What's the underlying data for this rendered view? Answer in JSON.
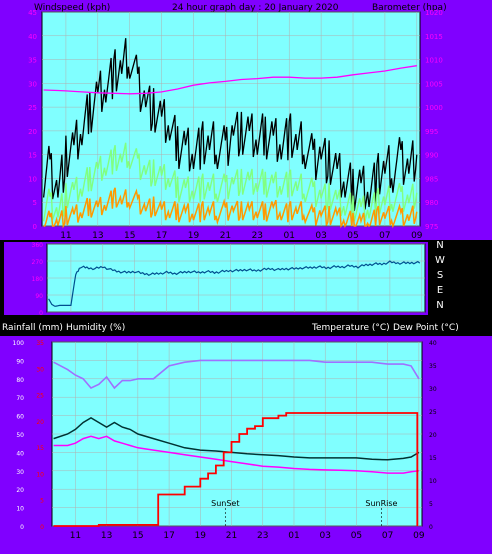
{
  "colors": {
    "frame_purple": "#8000ff",
    "plot_bg": "#80ffff",
    "top_bg": "#3a3a3a",
    "gust": "#000000",
    "wind_avg": "#80ff80",
    "wind_low": "#ff9900",
    "barometer": "#ff00ff",
    "direction": "#004f8f",
    "humidity": "#a070ff",
    "temperature": "#003333",
    "dewpoint": "#ff00ff",
    "rainfall": "#ff0000"
  },
  "header": {
    "windspeed_label": "Windspeed (kph)",
    "title": "24 hour graph day : 20 January 2020",
    "barometer_label": "Barometer (hpa)"
  },
  "x_ticks": [
    "11",
    "13",
    "15",
    "17",
    "19",
    "21",
    "23",
    "01",
    "03",
    "05",
    "07",
    "09"
  ],
  "wind_axis": {
    "left_ticks": [
      "0",
      "5",
      "10",
      "15",
      "20",
      "25",
      "30",
      "35",
      "40",
      "45"
    ],
    "right_ticks": [
      "975",
      "980",
      "985",
      "990",
      "995",
      "1000",
      "1005",
      "1010",
      "1015",
      "1020"
    ]
  },
  "direction_axis": {
    "left_ticks": [
      "360",
      "270",
      "180",
      "90",
      "0"
    ],
    "compass": [
      "N",
      "W",
      "S",
      "E",
      "N"
    ]
  },
  "bottom_header": {
    "rainfall_label": "Rainfall (mm)",
    "humidity_label": "Humidity (%)",
    "temp_label": "Temperature (°C)",
    "dew_label": "Dew Point (°C)"
  },
  "bottom_axis": {
    "left_ticks": [
      "0",
      "10",
      "20",
      "30",
      "40",
      "50",
      "60",
      "70",
      "80",
      "90",
      "100"
    ],
    "rain_ticks": [
      "0",
      "5",
      "10",
      "15",
      "20",
      "25",
      "30",
      "35"
    ],
    "right_ticks": [
      "0",
      "5",
      "10",
      "15",
      "20",
      "25",
      "30",
      "35",
      "40"
    ]
  },
  "events": [
    {
      "label": "SunSet",
      "hour": 20.6
    },
    {
      "label": "SunRise",
      "hour": 6.6
    }
  ],
  "chart_data": [
    {
      "type": "line",
      "panel": "wind-barometer",
      "x_unit": "hour of day",
      "xlim": [
        9.5,
        33.2
      ],
      "ylim": [
        0,
        45
      ],
      "y2lim": [
        975,
        1020
      ],
      "series": [
        {
          "name": "Windspeed (kph)",
          "role": "gust-max",
          "x": [
            9.6,
            10,
            10.5,
            11,
            11.5,
            12,
            12.5,
            13,
            13.5,
            14,
            14.5,
            15,
            15.5,
            16,
            16.5,
            17,
            17.5,
            18,
            18.5,
            19,
            19.5,
            20,
            20.5,
            21,
            21.5,
            22,
            22.5,
            23,
            23.5,
            24,
            24.5,
            25,
            25.5,
            26,
            26.5,
            27,
            27.5,
            28,
            28.5,
            29,
            29.5,
            30,
            30.5,
            31,
            31.5,
            32,
            32.5,
            33
          ],
          "y": [
            11,
            12,
            8,
            14,
            16,
            20,
            24,
            28,
            30,
            32,
            33,
            36,
            30,
            27,
            24,
            22,
            21,
            17,
            17,
            16,
            17,
            17,
            17,
            16,
            21,
            19,
            19,
            18,
            19,
            19,
            18,
            19,
            17,
            17,
            14,
            16,
            13,
            11,
            9,
            8,
            9,
            8,
            10,
            12,
            12,
            14,
            13,
            15
          ]
        },
        {
          "name": "Windspeed average",
          "role": "average",
          "x": [
            9.6,
            10,
            10.5,
            11,
            11.5,
            12,
            12.5,
            13,
            13.5,
            14,
            14.5,
            15,
            15.5,
            16,
            16.5,
            17,
            17.5,
            18,
            18.5,
            19,
            19.5,
            20,
            20.5,
            21,
            21.5,
            22,
            22.5,
            23,
            23.5,
            24,
            24.5,
            25,
            25.5,
            26,
            26.5,
            27,
            27.5,
            28,
            28.5,
            29,
            29.5,
            30,
            30.5,
            31,
            31.5,
            32,
            32.5,
            33
          ],
          "y": [
            4,
            5,
            3,
            6,
            7,
            8,
            10,
            12,
            13,
            14,
            14,
            15,
            13,
            12,
            11,
            10,
            10,
            8,
            8,
            8,
            8,
            8,
            8,
            8,
            10,
            9,
            9,
            9,
            9,
            9,
            9,
            9,
            8,
            8,
            7,
            7,
            6,
            5,
            4,
            4,
            4,
            4,
            5,
            5,
            6,
            6,
            6,
            7
          ]
        },
        {
          "name": "Windspeed low",
          "role": "low",
          "x": [
            9.6,
            10,
            10.5,
            11,
            11.5,
            12,
            12.5,
            13,
            13.5,
            14,
            14.5,
            15,
            15.5,
            16,
            16.5,
            17,
            17.5,
            18,
            18.5,
            19,
            19.5,
            20,
            20.5,
            21,
            21.5,
            22,
            22.5,
            23,
            23.5,
            24,
            24.5,
            25,
            25.5,
            26,
            26.5,
            27,
            27.5,
            28,
            28.5,
            29,
            29.5,
            30,
            30.5,
            31,
            31.5,
            32,
            32.5,
            33
          ],
          "y": [
            1,
            1,
            1,
            2,
            2,
            3,
            4,
            4,
            5,
            6,
            5,
            6,
            5,
            4,
            4,
            3,
            3,
            3,
            3,
            3,
            3,
            3,
            3,
            3,
            4,
            3,
            3,
            3,
            3,
            4,
            3,
            3,
            3,
            3,
            2,
            3,
            2,
            2,
            1,
            1,
            1,
            1,
            2,
            2,
            2,
            2,
            2,
            3
          ]
        },
        {
          "name": "Barometer (hpa)",
          "axis": "right",
          "x": [
            9.6,
            10.5,
            11,
            12,
            13,
            14,
            15,
            16,
            17,
            18,
            19,
            20,
            21,
            22,
            23,
            24,
            25,
            26,
            27,
            28,
            29,
            30,
            31,
            32,
            33
          ],
          "y": [
            1003.6,
            1003.5,
            1003.4,
            1003.2,
            1003.0,
            1002.9,
            1002.8,
            1002.9,
            1003.2,
            1003.8,
            1004.6,
            1005.1,
            1005.4,
            1005.8,
            1006.0,
            1006.3,
            1006.3,
            1006.1,
            1006.1,
            1006.3,
            1006.8,
            1007.2,
            1007.6,
            1008.2,
            1008.7
          ]
        }
      ]
    },
    {
      "type": "line",
      "panel": "wind-direction",
      "xlim": [
        9.5,
        33.2
      ],
      "ylim": [
        0,
        360
      ],
      "series": [
        {
          "name": "Wind direction",
          "x": [
            9.6,
            9.8,
            10,
            10.3,
            10.5,
            11,
            11.3,
            11.6,
            12,
            12.5,
            13,
            13.5,
            14,
            14.5,
            15,
            15.5,
            16,
            16.5,
            17,
            17.5,
            18,
            18.5,
            19,
            19.5,
            20,
            20.5,
            21,
            21.5,
            22,
            22.5,
            23,
            23.5,
            24,
            24.5,
            25,
            25.5,
            26,
            26.5,
            27,
            27.5,
            28,
            28.5,
            29,
            29.5,
            30,
            30.5,
            31,
            31.5,
            32,
            32.5,
            33
          ],
          "y": [
            70,
            40,
            30,
            35,
            35,
            35,
            200,
            240,
            235,
            230,
            240,
            225,
            215,
            210,
            215,
            205,
            200,
            205,
            210,
            205,
            210,
            215,
            210,
            215,
            210,
            215,
            220,
            220,
            225,
            220,
            225,
            230,
            225,
            230,
            230,
            235,
            235,
            240,
            235,
            240,
            240,
            245,
            240,
            250,
            255,
            255,
            265,
            260,
            260,
            262,
            262
          ]
        }
      ]
    },
    {
      "type": "line",
      "panel": "temperature-humidity-rain",
      "xlim": [
        9.5,
        33.2
      ],
      "ylim": [
        0,
        100
      ],
      "y_rain_lim": [
        0,
        35
      ],
      "y2lim": [
        0,
        40
      ],
      "series": [
        {
          "name": "Humidity (%)",
          "axis": "left",
          "x": [
            9.6,
            10.5,
            11,
            11.5,
            12,
            12.5,
            13,
            13.5,
            14,
            14.5,
            15,
            16,
            17,
            18,
            19,
            20,
            21,
            22,
            23,
            24,
            25,
            26,
            27,
            28,
            29,
            30,
            31,
            32,
            32.5,
            33
          ],
          "y": [
            89,
            85,
            82,
            80,
            75,
            77,
            81,
            75,
            79,
            79,
            80,
            80,
            87,
            89,
            90,
            90,
            90,
            90,
            90,
            90,
            90,
            90,
            89,
            89,
            89,
            89,
            88,
            88,
            87,
            80
          ]
        },
        {
          "name": "Temperature (°C)",
          "axis": "right",
          "x": [
            9.6,
            10.5,
            11,
            11.5,
            12,
            12.5,
            13,
            13.5,
            14,
            14.5,
            15,
            16,
            17,
            18,
            19,
            20,
            21,
            22,
            23,
            24,
            25,
            26,
            27,
            28,
            29,
            30,
            31,
            32,
            32.5,
            33
          ],
          "y": [
            19,
            20,
            21,
            22.5,
            23.5,
            22.5,
            21.5,
            22.5,
            21.5,
            21,
            20,
            19,
            18,
            17,
            16.5,
            16.3,
            16,
            15.7,
            15.5,
            15.3,
            15,
            14.8,
            14.8,
            14.8,
            14.8,
            14.5,
            14.4,
            14.7,
            15,
            16
          ]
        },
        {
          "name": "Dew Point (°C)",
          "axis": "right",
          "x": [
            9.6,
            10.5,
            11,
            11.5,
            12,
            12.5,
            13,
            13.5,
            14,
            14.5,
            15,
            16,
            17,
            18,
            19,
            20,
            21,
            22,
            23,
            24,
            25,
            26,
            27,
            28,
            29,
            30,
            31,
            32,
            32.5,
            33
          ],
          "y": [
            17.5,
            17.5,
            18,
            19,
            19.5,
            19,
            19.5,
            18.5,
            18,
            17.5,
            17,
            16.5,
            16,
            15.5,
            15,
            14.5,
            14,
            13.5,
            13,
            12.8,
            12.5,
            12.3,
            12.2,
            12.1,
            12,
            11.8,
            11.5,
            11.5,
            11.8,
            12
          ]
        },
        {
          "name": "Rainfall (mm)",
          "axis": "rain",
          "step": true,
          "x": [
            9.6,
            12.5,
            16,
            16.3,
            17,
            17.5,
            18,
            18.5,
            19,
            19.5,
            20,
            20.5,
            21,
            21.5,
            22,
            22.5,
            23,
            23.5,
            24,
            24.5,
            25,
            26,
            27,
            28,
            29,
            30,
            31,
            32,
            32.8,
            32.9
          ],
          "y": [
            0,
            0.2,
            0.2,
            6,
            6,
            6,
            7.5,
            7.5,
            9,
            10,
            11.5,
            14,
            16,
            17.5,
            18.5,
            19,
            20.5,
            20.5,
            21,
            21.5,
            21.5,
            21.5,
            21.5,
            21.5,
            21.5,
            21.5,
            21.5,
            21.5,
            21.5,
            0
          ]
        }
      ]
    }
  ]
}
